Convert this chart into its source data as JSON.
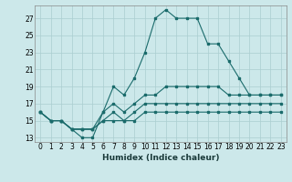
{
  "xlabel": "Humidex (Indice chaleur)",
  "background_color": "#cce8ea",
  "grid_color": "#aacdd0",
  "line_color": "#1a6b6b",
  "x_ticks": [
    0,
    1,
    2,
    3,
    4,
    5,
    6,
    7,
    8,
    9,
    10,
    11,
    12,
    13,
    14,
    15,
    16,
    17,
    18,
    19,
    20,
    21,
    22,
    23
  ],
  "y_ticks": [
    13,
    15,
    17,
    19,
    21,
    23,
    25,
    27
  ],
  "xlim": [
    -0.5,
    23.5
  ],
  "ylim": [
    12.5,
    28.5
  ],
  "series": [
    [
      16,
      15,
      15,
      14,
      13,
      13,
      16,
      19,
      18,
      20,
      23,
      27,
      28,
      27,
      27,
      27,
      24,
      24,
      22,
      20,
      18,
      18,
      18,
      18
    ],
    [
      16,
      15,
      15,
      14,
      14,
      14,
      16,
      17,
      16,
      17,
      18,
      18,
      19,
      19,
      19,
      19,
      19,
      19,
      18,
      18,
      18,
      18,
      18,
      18
    ],
    [
      16,
      15,
      15,
      14,
      14,
      14,
      15,
      16,
      15,
      16,
      17,
      17,
      17,
      17,
      17,
      17,
      17,
      17,
      17,
      17,
      17,
      17,
      17,
      17
    ],
    [
      16,
      15,
      15,
      14,
      14,
      14,
      15,
      15,
      15,
      15,
      16,
      16,
      16,
      16,
      16,
      16,
      16,
      16,
      16,
      16,
      16,
      16,
      16,
      16
    ]
  ],
  "tick_fontsize": 5.5,
  "xlabel_fontsize": 6.5,
  "marker_size": 2.0,
  "line_width": 0.8
}
